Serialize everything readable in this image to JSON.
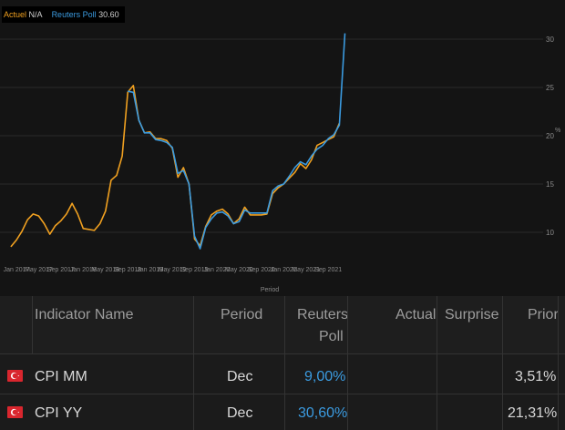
{
  "legend": {
    "actual_label": "Actuel",
    "actual_value": "N/A",
    "poll_label": "Reuters Poll",
    "poll_value": "30.60"
  },
  "colors": {
    "actual": "#f0a020",
    "poll": "#3b9be0",
    "background": "#141414"
  },
  "chart_data": {
    "type": "line",
    "xlabel": "Period",
    "ylabel": "%",
    "x_tick_labels": [
      "Jan 2017",
      "May 2017",
      "Sep 2017",
      "Jan 2018",
      "May 2018",
      "Sep 2018",
      "Jan 2019",
      "May 2019",
      "Sep 2019",
      "Jan 2020",
      "May 2020",
      "Sep 2020",
      "Jan 2021",
      "May 2021",
      "Sep 2021"
    ],
    "y_ticks": [
      10,
      15,
      20,
      25,
      30
    ],
    "ylim": [
      7.5,
      32.5
    ],
    "grid": "horizontal",
    "series": [
      {
        "name": "Actuel",
        "color": "#f0a020",
        "x": [
          "2016-12",
          "2017-01",
          "2017-02",
          "2017-03",
          "2017-04",
          "2017-05",
          "2017-06",
          "2017-07",
          "2017-08",
          "2017-09",
          "2017-10",
          "2017-11",
          "2017-12",
          "2018-01",
          "2018-02",
          "2018-03",
          "2018-04",
          "2018-05",
          "2018-06",
          "2018-07",
          "2018-08",
          "2018-09",
          "2018-10",
          "2018-11",
          "2018-12",
          "2019-01",
          "2019-02",
          "2019-03",
          "2019-04",
          "2019-05",
          "2019-06",
          "2019-07",
          "2019-08",
          "2019-09",
          "2019-10",
          "2019-11",
          "2019-12",
          "2020-01",
          "2020-02",
          "2020-03",
          "2020-04",
          "2020-05",
          "2020-06",
          "2020-07",
          "2020-08",
          "2020-09",
          "2020-10",
          "2020-11",
          "2020-12",
          "2021-01",
          "2021-02",
          "2021-03",
          "2021-04",
          "2021-05",
          "2021-06",
          "2021-07",
          "2021-08",
          "2021-09",
          "2021-10",
          "2021-11"
        ],
        "y": [
          8.5,
          9.2,
          10.1,
          11.3,
          11.9,
          11.7,
          10.9,
          9.8,
          10.7,
          11.2,
          11.9,
          13.0,
          11.9,
          10.4,
          10.3,
          10.2,
          10.9,
          12.2,
          15.4,
          15.9,
          17.9,
          24.5,
          25.2,
          21.6,
          20.3,
          20.4,
          19.7,
          19.7,
          19.5,
          18.7,
          15.7,
          16.7,
          15.0,
          9.3,
          8.6,
          10.6,
          11.8,
          12.2,
          12.4,
          11.9,
          10.9,
          11.4,
          12.6,
          11.8,
          11.8,
          11.8,
          11.9,
          14.0,
          14.6,
          15.0,
          15.6,
          16.2,
          17.1,
          16.6,
          17.5,
          19.0,
          19.3,
          19.6,
          19.9,
          21.3
        ]
      },
      {
        "name": "Reuters Poll",
        "color": "#3b9be0",
        "x": [
          "2018-09",
          "2018-10",
          "2018-11",
          "2018-12",
          "2019-01",
          "2019-02",
          "2019-03",
          "2019-04",
          "2019-05",
          "2019-06",
          "2019-07",
          "2019-08",
          "2019-09",
          "2019-10",
          "2019-11",
          "2019-12",
          "2020-01",
          "2020-02",
          "2020-03",
          "2020-04",
          "2020-05",
          "2020-06",
          "2020-07",
          "2020-08",
          "2020-09",
          "2020-10",
          "2020-11",
          "2020-12",
          "2021-01",
          "2021-02",
          "2021-03",
          "2021-04",
          "2021-05",
          "2021-06",
          "2021-07",
          "2021-08",
          "2021-09",
          "2021-10",
          "2021-11",
          "2021-12"
        ],
        "y": [
          24.6,
          24.5,
          21.6,
          20.3,
          20.3,
          19.6,
          19.5,
          19.3,
          18.8,
          16.1,
          16.4,
          15.0,
          9.6,
          8.3,
          10.5,
          11.4,
          12.0,
          12.1,
          11.7,
          10.9,
          11.1,
          12.3,
          12.0,
          12.0,
          12.0,
          12.0,
          14.3,
          14.8,
          15.0,
          15.8,
          16.7,
          17.3,
          17.0,
          17.9,
          18.6,
          19.0,
          19.7,
          20.1,
          21.1,
          30.6
        ]
      }
    ]
  },
  "table": {
    "headers": {
      "name": "Indicator Name",
      "period": "Period",
      "poll_line1": "Reuters",
      "poll_line2": "Poll",
      "actual": "Actual",
      "surprise": "Surprise",
      "prior": "Prior"
    },
    "rows": [
      {
        "flag": "turkey-flag-icon",
        "name": "CPI MM",
        "period": "Dec",
        "poll": "9,00%",
        "actual": "",
        "surprise": "",
        "prior": "3,51%"
      },
      {
        "flag": "turkey-flag-icon",
        "name": "CPI YY",
        "period": "Dec",
        "poll": "30,60%",
        "actual": "",
        "surprise": "",
        "prior": "21,31%"
      }
    ]
  }
}
